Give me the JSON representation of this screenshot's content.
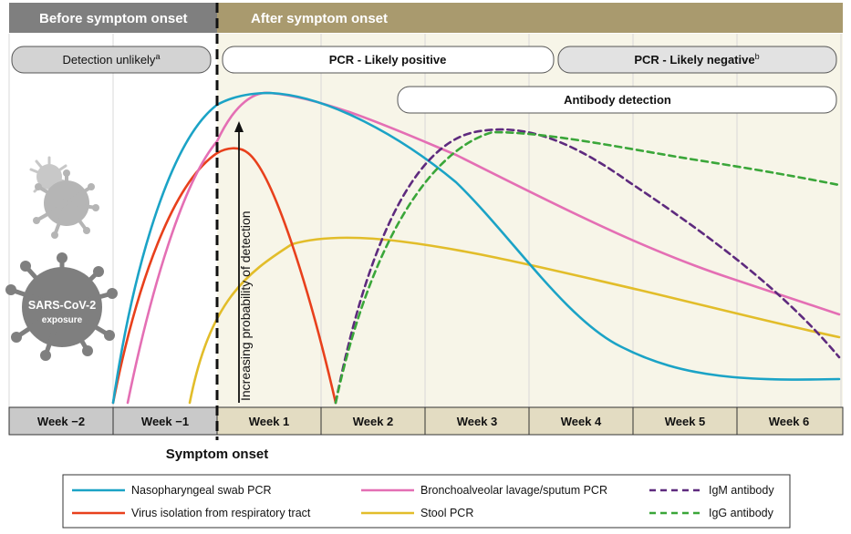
{
  "header": {
    "before_label": "Before symptom onset",
    "after_label": "After symptom onset"
  },
  "pills": {
    "detection_unlikely": "Detection unlikely",
    "detection_unlikely_sup": "a",
    "pcr_positive": "PCR - Likely positive",
    "pcr_negative": "PCR - Likely negative",
    "pcr_negative_sup": "b",
    "antibody": "Antibody detection"
  },
  "y_axis_label": "Increasing probability of detection",
  "virus": {
    "line1": "SARS-CoV-2",
    "line2": "exposure"
  },
  "weeks": [
    "Week −2",
    "Week −1",
    "Week 1",
    "Week 2",
    "Week 3",
    "Week 4",
    "Week 5",
    "Week 6"
  ],
  "symptom_onset_label": "Symptom onset",
  "legend": [
    {
      "label": "Nasopharyngeal swab PCR",
      "color": "#1ba3c6",
      "dashed": false
    },
    {
      "label": "Bronchoalveolar lavage/sputum PCR",
      "color": "#e46fb4",
      "dashed": false
    },
    {
      "label": "IgM antibody",
      "color": "#5e2a7e",
      "dashed": true
    },
    {
      "label": "Virus isolation from respiratory tract",
      "color": "#e8401c",
      "dashed": false
    },
    {
      "label": "Stool PCR",
      "color": "#e2bd2a",
      "dashed": false
    },
    {
      "label": "IgG antibody",
      "color": "#3aa639",
      "dashed": true
    }
  ],
  "colors": {
    "before_header": "#7f7f7f",
    "after_header": "#a99a6e",
    "after_bg": "#f7f5e8",
    "week_before_bg": "#c9c9c9",
    "week_after_bg": "#e3dcc2",
    "virus_gray": "#7f7f7f"
  }
}
